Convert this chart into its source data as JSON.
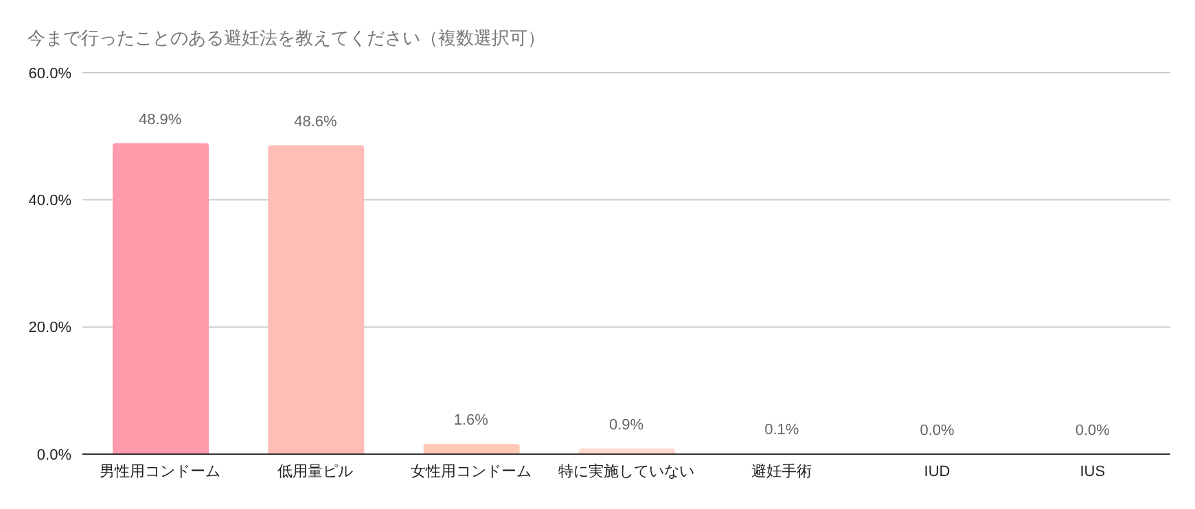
{
  "chart_data": {
    "type": "bar",
    "title": "今まで行ったことのある避妊法を教えてください（複数選択可）",
    "categories": [
      "男性用コンドーム",
      "低用量ピル",
      "女性用コンドーム",
      "特に実施していない",
      "避妊手術",
      "IUD",
      "IUS"
    ],
    "values": [
      48.9,
      48.6,
      1.6,
      0.9,
      0.1,
      0.0,
      0.0
    ],
    "colors": [
      "#ff9bab",
      "#ffbdb8",
      "#ffc9b5",
      "#ffdccf",
      "#ffe3d8",
      "#ffe3d8",
      "#ffe3d8"
    ],
    "value_labels": [
      "48.9%",
      "48.6%",
      "1.6%",
      "0.9%",
      "0.1%",
      "0.0%",
      "0.0%"
    ],
    "ylim": [
      0,
      60
    ],
    "yticks": [
      {
        "value": 0,
        "label": "0.0%"
      },
      {
        "value": 20,
        "label": "20.0%"
      },
      {
        "value": 40,
        "label": "40.0%"
      },
      {
        "value": 60,
        "label": "60.0%"
      }
    ],
    "grid": "y",
    "legend": false
  }
}
